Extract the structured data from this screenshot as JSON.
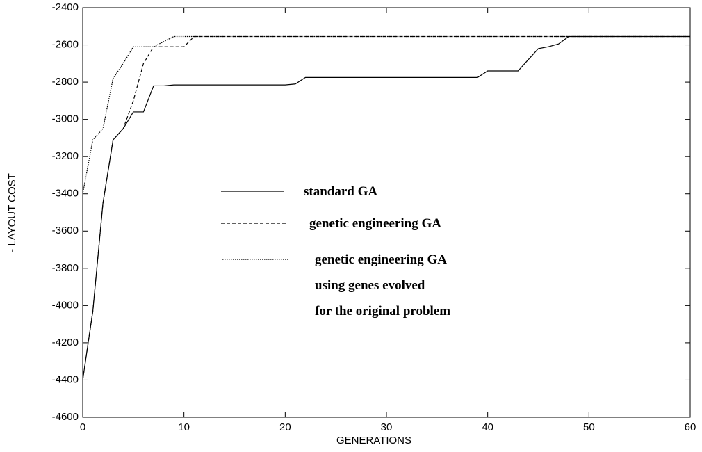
{
  "chart_data": {
    "type": "line",
    "xlabel": "GENERATIONS",
    "ylabel": "- LAYOUT COST",
    "xlim": [
      0,
      60
    ],
    "xticks": [
      0,
      10,
      20,
      30,
      40,
      50,
      60
    ],
    "ylim": [
      -4600,
      -2400
    ],
    "yticks": [
      -4600,
      -4400,
      -4200,
      -4000,
      -3800,
      -3600,
      -3400,
      -3200,
      -3000,
      -2800,
      -2600,
      -2400
    ],
    "series": [
      {
        "name": "standard GA",
        "color": "#000000",
        "dash": "solid",
        "x": [
          0,
          1,
          2,
          3,
          4,
          5,
          6,
          7,
          8,
          9,
          20,
          21,
          22,
          39,
          40,
          43,
          44,
          45,
          46,
          47,
          48,
          60
        ],
        "values": [
          -4400,
          -4030,
          -3450,
          -3110,
          -3050,
          -2960,
          -2960,
          -2820,
          -2820,
          -2815,
          -2815,
          -2810,
          -2775,
          -2775,
          -2740,
          -2740,
          -2680,
          -2620,
          -2610,
          -2595,
          -2555,
          -2555
        ]
      },
      {
        "name": "genetic engineering GA",
        "color": "#000000",
        "dash": "dashed",
        "x": [
          0,
          1,
          2,
          3,
          4,
          5,
          6,
          7,
          10,
          11,
          60
        ],
        "values": [
          -4400,
          -4030,
          -3450,
          -3110,
          -3050,
          -2900,
          -2700,
          -2610,
          -2610,
          -2555,
          -2555
        ]
      },
      {
        "name": "genetic engineering GA\nusing genes  evolved\nfor the original problem",
        "color": "#000000",
        "dash": "dotted",
        "x": [
          0,
          1,
          2,
          3,
          4,
          5,
          7,
          9,
          60
        ],
        "values": [
          -3400,
          -3110,
          -3050,
          -2780,
          -2700,
          -2610,
          -2610,
          -2555,
          -2555
        ]
      }
    ]
  }
}
